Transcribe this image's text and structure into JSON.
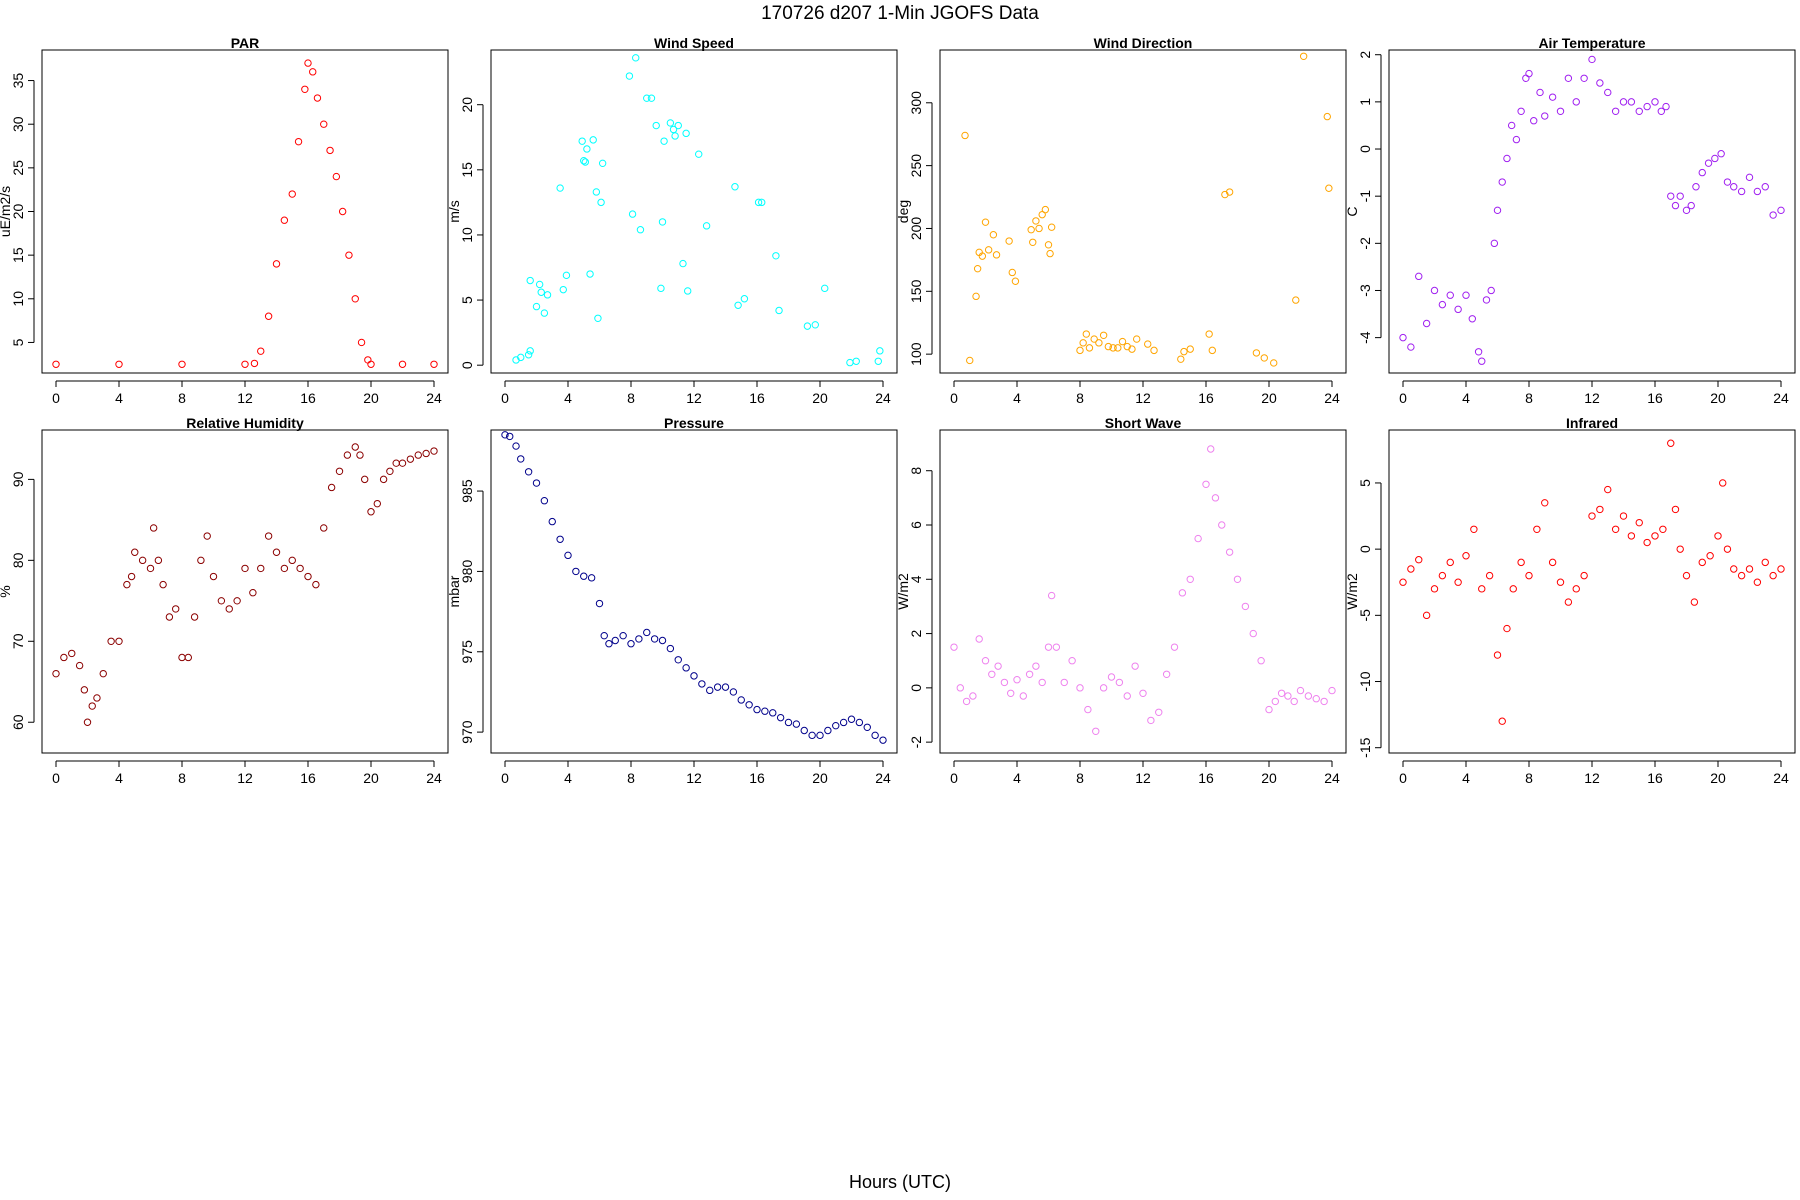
{
  "figure": {
    "title": "170726   d207   1-Min  JGOFS Data",
    "xlabel": "Hours (UTC)"
  },
  "chart_data": [
    {
      "type": "scatter",
      "title": "PAR",
      "xlabel": "",
      "ylabel": "uE/m2/s",
      "color": "#ff0000",
      "xlim": [
        0,
        24
      ],
      "xticks": [
        0,
        4,
        8,
        12,
        16,
        20,
        24
      ],
      "ylim": [
        1.5,
        38.5
      ],
      "yticks": [
        5,
        10,
        15,
        20,
        25,
        30,
        35
      ],
      "x": [
        0,
        4,
        8,
        12,
        12.6,
        13.0,
        13.5,
        14.0,
        14.5,
        15.0,
        15.4,
        15.8,
        16.0,
        16.3,
        16.6,
        17.0,
        17.4,
        17.8,
        18.2,
        18.6,
        19.0,
        19.4,
        19.8,
        20.0,
        22,
        24
      ],
      "y": [
        2.5,
        2.5,
        2.5,
        2.5,
        2.6,
        4,
        8,
        14,
        19,
        22,
        28,
        34,
        37,
        36,
        33,
        30,
        27,
        24,
        20,
        15,
        10,
        5,
        3,
        2.5,
        2.5,
        2.5
      ]
    },
    {
      "type": "scatter",
      "title": "Wind Speed",
      "xlabel": "",
      "ylabel": "m/s",
      "color": "#00ffff",
      "xlim": [
        0,
        24
      ],
      "xticks": [
        0,
        4,
        8,
        12,
        16,
        20,
        24
      ],
      "ylim": [
        -0.6,
        24.2
      ],
      "yticks": [
        0,
        5,
        10,
        15,
        20
      ],
      "x": [
        0.7,
        1.0,
        1.5,
        1.6,
        1.6,
        2.0,
        2.2,
        2.3,
        2.5,
        2.7,
        3.5,
        3.7,
        3.9,
        4.9,
        5.0,
        5.1,
        5.2,
        5.4,
        5.6,
        5.8,
        5.9,
        6.1,
        6.2,
        7.9,
        8.1,
        8.3,
        8.6,
        9.0,
        9.3,
        9.6,
        9.9,
        10.0,
        10.1,
        10.5,
        10.7,
        10.8,
        11.0,
        11.3,
        11.5,
        11.6,
        12.3,
        12.8,
        14.6,
        14.8,
        15.2,
        16.1,
        16.3,
        17.2,
        17.4,
        19.2,
        19.7,
        20.3,
        21.9,
        22.3,
        23.7,
        23.8
      ],
      "y": [
        0.4,
        0.6,
        0.8,
        1.1,
        6.5,
        4.5,
        6.2,
        5.6,
        4.0,
        5.4,
        13.6,
        5.8,
        6.9,
        17.2,
        15.7,
        15.6,
        16.6,
        7.0,
        17.3,
        13.3,
        3.6,
        12.5,
        15.5,
        22.2,
        11.6,
        23.6,
        10.4,
        20.5,
        20.5,
        18.4,
        5.9,
        11.0,
        17.2,
        18.6,
        18.1,
        17.6,
        18.4,
        7.8,
        17.8,
        5.7,
        16.2,
        10.7,
        13.7,
        4.6,
        5.1,
        12.5,
        12.5,
        8.4,
        4.2,
        3.0,
        3.1,
        5.9,
        0.2,
        0.3,
        0.3,
        1.1
      ]
    },
    {
      "type": "scatter",
      "title": "Wind Direction",
      "xlabel": "",
      "ylabel": "deg",
      "color": "#ffa500",
      "xlim": [
        0,
        24
      ],
      "xticks": [
        0,
        4,
        8,
        12,
        16,
        20,
        24
      ],
      "ylim": [
        85,
        342
      ],
      "yticks": [
        100,
        150,
        200,
        250,
        300
      ],
      "x": [
        0.7,
        1.0,
        1.4,
        1.5,
        1.6,
        1.8,
        2.0,
        2.2,
        2.5,
        2.7,
        3.5,
        3.7,
        3.9,
        4.9,
        5.0,
        5.2,
        5.4,
        5.6,
        5.8,
        6.0,
        6.1,
        6.2,
        8.0,
        8.2,
        8.4,
        8.6,
        8.9,
        9.2,
        9.5,
        9.8,
        10.1,
        10.4,
        10.7,
        11.0,
        11.3,
        11.6,
        12.3,
        12.7,
        14.4,
        14.6,
        15.0,
        16.2,
        16.4,
        17.2,
        17.5,
        19.2,
        19.7,
        20.3,
        21.7,
        22.2,
        23.7,
        23.8
      ],
      "y": [
        274,
        95,
        146,
        168,
        181,
        178,
        205,
        183,
        195,
        179,
        190,
        165,
        158,
        199,
        189,
        206,
        200,
        211,
        215,
        187,
        180,
        201,
        103,
        109,
        116,
        105,
        112,
        109,
        115,
        106,
        105,
        105,
        110,
        106,
        104,
        112,
        108,
        103,
        96,
        102,
        104,
        116,
        103,
        227,
        229,
        101,
        97,
        93,
        143,
        337,
        289,
        232
      ]
    },
    {
      "type": "scatter",
      "title": "Air Temperature",
      "xlabel": "",
      "ylabel": "C",
      "color": "#a020f0",
      "xlim": [
        0,
        24
      ],
      "xticks": [
        0,
        4,
        8,
        12,
        16,
        20,
        24
      ],
      "ylim": [
        -4.75,
        2.1
      ],
      "yticks": [
        -4,
        -3,
        -2,
        -1,
        0,
        1,
        2
      ],
      "x": [
        0,
        0.5,
        1.0,
        1.5,
        2.0,
        2.5,
        3.0,
        3.5,
        4.0,
        4.4,
        4.8,
        5.0,
        5.3,
        5.6,
        5.8,
        6.0,
        6.3,
        6.6,
        6.9,
        7.2,
        7.5,
        7.8,
        8.0,
        8.3,
        8.7,
        9.0,
        9.5,
        10.0,
        10.5,
        11.0,
        11.5,
        12.0,
        12.5,
        13.0,
        13.5,
        14.0,
        14.5,
        15.0,
        15.5,
        16.0,
        16.4,
        16.7,
        17.0,
        17.3,
        17.6,
        18.0,
        18.3,
        18.6,
        19.0,
        19.4,
        19.8,
        20.2,
        20.6,
        21.0,
        21.5,
        22.0,
        22.5,
        23.0,
        23.5,
        24.0
      ],
      "y": [
        -4.0,
        -4.2,
        -2.7,
        -3.7,
        -3.0,
        -3.3,
        -3.1,
        -3.4,
        -3.1,
        -3.6,
        -4.3,
        -4.5,
        -3.2,
        -3.0,
        -2.0,
        -1.3,
        -0.7,
        -0.2,
        0.5,
        0.2,
        0.8,
        1.5,
        1.6,
        0.6,
        1.2,
        0.7,
        1.1,
        0.8,
        1.5,
        1.0,
        1.5,
        1.9,
        1.4,
        1.2,
        0.8,
        1.0,
        1.0,
        0.8,
        0.9,
        1.0,
        0.8,
        0.9,
        -1.0,
        -1.2,
        -1.0,
        -1.3,
        -1.2,
        -0.8,
        -0.5,
        -0.3,
        -0.2,
        -0.1,
        -0.7,
        -0.8,
        -0.9,
        -0.6,
        -0.9,
        -0.8,
        -1.4,
        -1.3
      ]
    },
    {
      "type": "scatter",
      "title": "Relative Humidity",
      "xlabel": "",
      "ylabel": "%",
      "color": "#8b0000",
      "xlim": [
        0,
        24
      ],
      "xticks": [
        0,
        4,
        8,
        12,
        16,
        20,
        24
      ],
      "ylim": [
        56.2,
        96.1
      ],
      "yticks": [
        60,
        70,
        80,
        90
      ],
      "x": [
        0,
        0.5,
        1.0,
        1.5,
        1.8,
        2.0,
        2.3,
        2.6,
        3.0,
        3.5,
        4.0,
        4.5,
        4.8,
        5.0,
        5.5,
        6.0,
        6.2,
        6.5,
        6.8,
        7.2,
        7.6,
        8.0,
        8.4,
        8.8,
        9.2,
        9.6,
        10.0,
        10.5,
        11.0,
        11.5,
        12.0,
        12.5,
        13.0,
        13.5,
        14.0,
        14.5,
        15.0,
        15.5,
        16.0,
        16.5,
        17.0,
        17.5,
        18.0,
        18.5,
        19.0,
        19.3,
        19.6,
        20.0,
        20.4,
        20.8,
        21.2,
        21.6,
        22.0,
        22.5,
        23.0,
        23.5,
        24.0
      ],
      "y": [
        66,
        68,
        68.5,
        67,
        64,
        60,
        62,
        63,
        66,
        70,
        70,
        77,
        78,
        81,
        80,
        79,
        84,
        80,
        77,
        73,
        74,
        68,
        68,
        73,
        80,
        83,
        78,
        75,
        74,
        75,
        79,
        76,
        79,
        83,
        81,
        79,
        80,
        79,
        78,
        77,
        84,
        89,
        91,
        93,
        94,
        93,
        90,
        86,
        87,
        90,
        91,
        92,
        92,
        92.5,
        93,
        93.2,
        93.5
      ]
    },
    {
      "type": "scatter",
      "title": "Pressure",
      "xlabel": "",
      "ylabel": "mbar",
      "color": "#00008b",
      "xlim": [
        0,
        24
      ],
      "xticks": [
        0,
        4,
        8,
        12,
        16,
        20,
        24
      ],
      "ylim": [
        968.7,
        988.8
      ],
      "yticks": [
        970,
        975,
        980,
        985
      ],
      "x": [
        0,
        0.3,
        0.7,
        1.0,
        1.5,
        2.0,
        2.5,
        3.0,
        3.5,
        4.0,
        4.5,
        5.0,
        5.5,
        6.0,
        6.3,
        6.6,
        7.0,
        7.5,
        8.0,
        8.5,
        9.0,
        9.5,
        10.0,
        10.5,
        11.0,
        11.5,
        12.0,
        12.5,
        13.0,
        13.5,
        14.0,
        14.5,
        15.0,
        15.5,
        16.0,
        16.5,
        17.0,
        17.5,
        18.0,
        18.5,
        19.0,
        19.5,
        20.0,
        20.5,
        21.0,
        21.5,
        22.0,
        22.5,
        23.0,
        23.5,
        24.0
      ],
      "y": [
        988.5,
        988.4,
        987.8,
        987.0,
        986.2,
        985.5,
        984.4,
        983.1,
        982.0,
        981.0,
        980.0,
        979.7,
        979.6,
        978.0,
        976.0,
        975.5,
        975.7,
        976.0,
        975.5,
        975.8,
        976.2,
        975.8,
        975.7,
        975.2,
        974.5,
        974.0,
        973.5,
        973.0,
        972.6,
        972.8,
        972.8,
        972.5,
        972.0,
        971.7,
        971.4,
        971.3,
        971.2,
        970.9,
        970.6,
        970.5,
        970.1,
        969.8,
        969.8,
        970.1,
        970.4,
        970.6,
        970.8,
        970.6,
        970.3,
        969.8,
        969.5
      ]
    },
    {
      "type": "scatter",
      "title": "Short Wave",
      "xlabel": "",
      "ylabel": "W/m2",
      "color": "#ee82ee",
      "xlim": [
        0,
        24
      ],
      "xticks": [
        0,
        4,
        8,
        12,
        16,
        20,
        24
      ],
      "ylim": [
        -2.4,
        9.5
      ],
      "yticks": [
        -2,
        0,
        2,
        4,
        6,
        8
      ],
      "x": [
        0,
        0.4,
        0.8,
        1.2,
        1.6,
        2.0,
        2.4,
        2.8,
        3.2,
        3.6,
        4.0,
        4.4,
        4.8,
        5.2,
        5.6,
        6.0,
        6.2,
        6.5,
        7.0,
        7.5,
        8.0,
        8.5,
        9.0,
        9.5,
        10.0,
        10.5,
        11.0,
        11.5,
        12.0,
        12.5,
        13.0,
        13.5,
        14.0,
        14.5,
        15.0,
        15.5,
        16.0,
        16.3,
        16.6,
        17.0,
        17.5,
        18.0,
        18.5,
        19.0,
        19.5,
        20.0,
        20.4,
        20.8,
        21.2,
        21.6,
        22.0,
        22.5,
        23.0,
        23.5,
        24.0
      ],
      "y": [
        1.5,
        0.0,
        -0.5,
        -0.3,
        1.8,
        1.0,
        0.5,
        0.8,
        0.2,
        -0.2,
        0.3,
        -0.3,
        0.5,
        0.8,
        0.2,
        1.5,
        3.4,
        1.5,
        0.2,
        1.0,
        0.0,
        -0.8,
        -1.6,
        0.0,
        0.4,
        0.2,
        -0.3,
        0.8,
        -0.2,
        -1.2,
        -0.9,
        0.5,
        1.5,
        3.5,
        4.0,
        5.5,
        7.5,
        8.8,
        7.0,
        6.0,
        5.0,
        4.0,
        3.0,
        2.0,
        1.0,
        -0.8,
        -0.5,
        -0.2,
        -0.3,
        -0.5,
        -0.1,
        -0.3,
        -0.4,
        -0.5,
        -0.1
      ]
    },
    {
      "type": "scatter",
      "title": "Infrared",
      "xlabel": "",
      "ylabel": "W/m2",
      "color": "#ff0000",
      "xlim": [
        0,
        24
      ],
      "xticks": [
        0,
        4,
        8,
        12,
        16,
        20,
        24
      ],
      "ylim": [
        -15.4,
        9.0
      ],
      "yticks": [
        -15,
        -10,
        -5,
        0,
        5
      ],
      "x": [
        0,
        0.5,
        1.0,
        1.5,
        2.0,
        2.5,
        3.0,
        3.5,
        4.0,
        4.5,
        5.0,
        5.5,
        6.0,
        6.3,
        6.6,
        7.0,
        7.5,
        8.0,
        8.5,
        9.0,
        9.5,
        10.0,
        10.5,
        11.0,
        11.5,
        12.0,
        12.5,
        13.0,
        13.5,
        14.0,
        14.5,
        15.0,
        15.5,
        16.0,
        16.5,
        17.0,
        17.3,
        17.6,
        18.0,
        18.5,
        19.0,
        19.5,
        20.0,
        20.3,
        20.6,
        21.0,
        21.5,
        22.0,
        22.5,
        23.0,
        23.5,
        24.0
      ],
      "y": [
        -2.5,
        -1.5,
        -0.8,
        -5.0,
        -3.0,
        -2.0,
        -1.0,
        -2.5,
        -0.5,
        1.5,
        -3.0,
        -2.0,
        -8.0,
        -13.0,
        -6.0,
        -3.0,
        -1.0,
        -2.0,
        1.5,
        3.5,
        -1.0,
        -2.5,
        -4.0,
        -3.0,
        -2.0,
        2.5,
        3.0,
        4.5,
        1.5,
        2.5,
        1.0,
        2.0,
        0.5,
        1.0,
        1.5,
        8.0,
        3.0,
        0.0,
        -2.0,
        -4.0,
        -1.0,
        -0.5,
        1.0,
        5.0,
        0.0,
        -1.5,
        -2.0,
        -1.5,
        -2.5,
        -1.0,
        -2.0,
        -1.5
      ]
    }
  ]
}
